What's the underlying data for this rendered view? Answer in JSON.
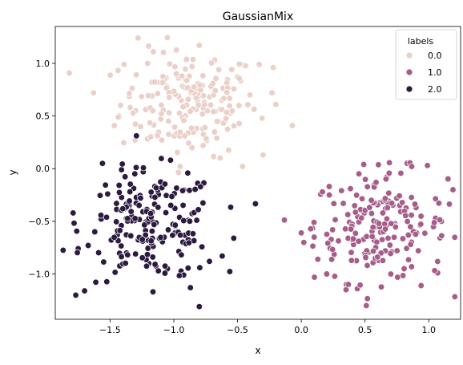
{
  "chart_data": {
    "type": "scatter",
    "title": "GaussianMix",
    "xlabel": "x",
    "ylabel": "y",
    "xlim": [
      -1.93,
      1.25
    ],
    "ylim": [
      -1.43,
      1.35
    ],
    "xticks": [
      -1.5,
      -1.0,
      -0.5,
      0.0,
      0.5,
      1.0
    ],
    "xtick_labels": [
      "−1.5",
      "−1.0",
      "−0.5",
      "0.0",
      "0.5",
      "1.0"
    ],
    "yticks": [
      -1.0,
      -0.5,
      0.0,
      0.5,
      1.0
    ],
    "ytick_labels": [
      "−1.0",
      "−0.5",
      "0.0",
      "0.5",
      "1.0"
    ],
    "grid": false,
    "legend": {
      "title": "labels",
      "placement": "top-right",
      "entries": [
        "0.0",
        "1.0",
        "2.0"
      ]
    },
    "series": [
      {
        "name": "0.0",
        "color": "#ebd0c9",
        "center": [
          -0.88,
          0.62
        ],
        "spread": [
          0.27,
          0.25
        ],
        "points": [
          [
            -1.28,
            1.24
          ],
          [
            -1.16,
            1.11
          ],
          [
            -0.8,
            1.17
          ],
          [
            -1.39,
            0.99
          ],
          [
            -0.68,
            1.03
          ],
          [
            -0.33,
            0.99
          ],
          [
            -0.22,
            0.96
          ],
          [
            -1.63,
            0.72
          ],
          [
            -1.43,
            0.5
          ],
          [
            -0.07,
            0.41
          ],
          [
            -0.2,
            0.61
          ],
          [
            -0.46,
            0.02
          ],
          [
            -0.3,
            0.13
          ],
          [
            -0.95,
            0.02
          ],
          [
            -0.77,
            0.22
          ],
          [
            -1.06,
            0.86
          ],
          [
            -0.5,
            0.87
          ],
          [
            -1.3,
            0.55
          ],
          [
            -0.23,
            0.72
          ],
          [
            -0.58,
            0.37
          ]
        ]
      },
      {
        "name": "1.0",
        "color": "#a75d8a",
        "center": [
          0.62,
          -0.55
        ],
        "spread": [
          0.26,
          0.26
        ],
        "points": [
          [
            0.49,
            0.04
          ],
          [
            0.67,
            -0.08
          ],
          [
            0.99,
            0.03
          ],
          [
            1.19,
            -0.2
          ],
          [
            0.0,
            -0.61
          ],
          [
            0.02,
            -0.7
          ],
          [
            0.1,
            -0.51
          ],
          [
            0.13,
            -0.86
          ],
          [
            0.2,
            -1.0
          ],
          [
            0.44,
            -1.14
          ],
          [
            0.51,
            -1.3
          ],
          [
            0.94,
            -1.11
          ],
          [
            1.07,
            -0.99
          ],
          [
            1.1,
            -0.5
          ],
          [
            0.22,
            -0.25
          ],
          [
            0.66,
            -0.78
          ],
          [
            0.33,
            -0.33
          ],
          [
            0.84,
            -0.63
          ],
          [
            0.41,
            -0.72
          ],
          [
            0.75,
            -0.28
          ]
        ]
      },
      {
        "name": "2.0",
        "color": "#2c1a41",
        "center": [
          -1.18,
          -0.54
        ],
        "spread": [
          0.26,
          0.26
        ],
        "points": [
          [
            -1.56,
            0.05
          ],
          [
            -1.41,
            -0.01
          ],
          [
            -1.79,
            -0.42
          ],
          [
            -1.75,
            -0.76
          ],
          [
            -1.7,
            -1.16
          ],
          [
            -0.8,
            -1.31
          ],
          [
            -0.87,
            -1.13
          ],
          [
            -0.62,
            -0.83
          ],
          [
            -0.72,
            -0.88
          ],
          [
            -0.53,
            -0.66
          ],
          [
            -1.17,
            -0.26
          ],
          [
            -1.3,
            -0.81
          ],
          [
            -0.99,
            -0.61
          ],
          [
            -1.45,
            -0.33
          ],
          [
            -0.92,
            -0.2
          ],
          [
            -1.62,
            -0.6
          ],
          [
            -1.05,
            -0.95
          ],
          [
            -1.33,
            -0.45
          ],
          [
            -0.82,
            -0.49
          ],
          [
            -1.24,
            -0.03
          ]
        ]
      }
    ]
  }
}
